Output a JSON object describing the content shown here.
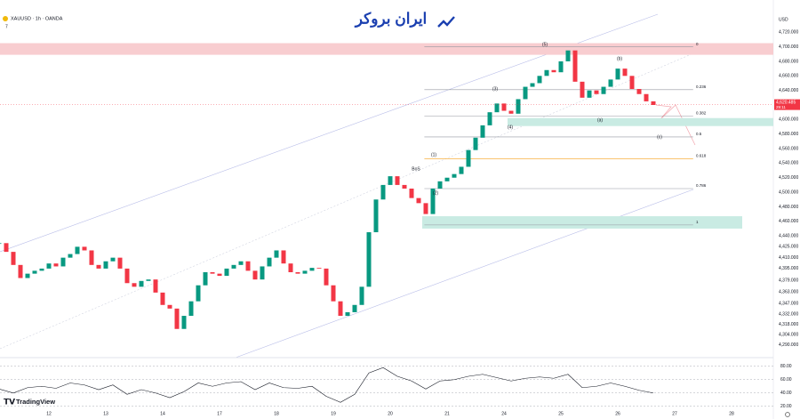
{
  "brand": "ایران بروکر",
  "footer": "TradingView",
  "chart_data": [
    {
      "type": "candlestick",
      "title": "XAUUSD · 1h · OANDA",
      "indicator_count": "7",
      "currency": "USD",
      "up_color": "#089981",
      "down_color": "#f23645",
      "x": [
        0,
        1,
        2,
        3,
        4,
        5,
        6,
        7,
        8,
        9,
        10,
        11,
        12,
        13,
        14,
        15,
        16,
        17,
        18,
        19,
        20,
        21,
        22,
        23,
        24,
        25,
        26,
        27,
        28,
        29,
        30,
        31,
        32,
        33,
        34,
        35,
        36,
        37,
        38,
        39,
        40,
        41,
        42,
        43,
        44,
        45,
        46,
        47,
        48,
        49,
        50,
        51,
        52,
        53,
        54,
        55,
        56,
        57,
        58,
        59,
        60,
        61,
        62,
        63,
        64,
        65,
        66,
        67,
        68,
        69,
        70,
        71,
        72,
        73,
        74,
        75,
        76,
        77,
        78,
        79,
        80,
        81,
        82,
        83,
        84,
        85,
        86,
        87,
        88,
        89,
        90,
        91,
        92
      ],
      "values": [
        4430,
        4418,
        4400,
        4382,
        4388,
        4392,
        4395,
        4402,
        4398,
        4410,
        4415,
        4425,
        4420,
        4400,
        4395,
        4405,
        4410,
        4395,
        4375,
        4370,
        4378,
        4380,
        4362,
        4345,
        4340,
        4312,
        4330,
        4350,
        4372,
        4390,
        4388,
        4385,
        4395,
        4400,
        4405,
        4392,
        4380,
        4398,
        4410,
        4420,
        4402,
        4390,
        4388,
        4392,
        4396,
        4395,
        4372,
        4350,
        4330,
        4335,
        4345,
        4370,
        4445,
        4490,
        4510,
        4522,
        4510,
        4505,
        4492,
        4485,
        4470,
        4505,
        4515,
        4520,
        4525,
        4535,
        4558,
        4575,
        4592,
        4610,
        4622,
        4612,
        4608,
        4628,
        4645,
        4650,
        4660,
        4668,
        4665,
        4680,
        4695,
        4652,
        4630,
        4640,
        4635,
        4645,
        4655,
        4670,
        4660,
        4642,
        4635,
        4625,
        4620
      ],
      "xlim": [
        0.125,
        108.875
      ],
      "ylim": [
        4275,
        4735
      ],
      "xticks": [
        {
          "value": 7,
          "label": "12"
        },
        {
          "value": 15,
          "label": "13"
        },
        {
          "value": 23,
          "label": "14"
        },
        {
          "value": 31,
          "label": "17"
        },
        {
          "value": 39,
          "label": "18"
        },
        {
          "value": 47,
          "label": "19"
        },
        {
          "value": 55,
          "label": "20"
        },
        {
          "value": 63,
          "label": "21"
        },
        {
          "value": 71,
          "label": "24"
        },
        {
          "value": 79,
          "label": "25"
        },
        {
          "value": 87,
          "label": "26"
        },
        {
          "value": 95,
          "label": "27"
        },
        {
          "value": 103,
          "label": "28"
        }
      ],
      "yticks": [
        {
          "value": 4720,
          "label": "4,720.000"
        },
        {
          "value": 4700,
          "label": "4,700.000"
        },
        {
          "value": 4680,
          "label": "4,680.000"
        },
        {
          "value": 4660,
          "label": "4,660.000"
        },
        {
          "value": 4640,
          "label": "4,640.000"
        },
        {
          "value": 4620,
          "label": "4,620.000"
        },
        {
          "value": 4600,
          "label": "4,600.000"
        },
        {
          "value": 4580,
          "label": "4,580.000"
        },
        {
          "value": 4560,
          "label": "4,560.000"
        },
        {
          "value": 4540,
          "label": "4,540.000"
        },
        {
          "value": 4520,
          "label": "4,520.000"
        },
        {
          "value": 4500,
          "label": "4,500.000"
        },
        {
          "value": 4480,
          "label": "4,480.000"
        },
        {
          "value": 4460,
          "label": "4,460.000"
        },
        {
          "value": 4440,
          "label": "4,440.000"
        },
        {
          "value": 4425,
          "label": "4,425.000"
        },
        {
          "value": 4410,
          "label": "4,410.000"
        },
        {
          "value": 4395,
          "label": "4,395.000"
        },
        {
          "value": 4379,
          "label": "4,379.000"
        },
        {
          "value": 4363,
          "label": "4,363.000"
        },
        {
          "value": 4347,
          "label": "4,347.000"
        },
        {
          "value": 4332,
          "label": "4,332.000"
        },
        {
          "value": 4318,
          "label": "4,318.000"
        },
        {
          "value": 4304,
          "label": "4,304.000"
        },
        {
          "value": 4290,
          "label": "4,290.000"
        }
      ],
      "grid": false,
      "last_price": {
        "value": 4620.485,
        "label": "4,620.485"
      },
      "countdown": "29:11",
      "fib_levels": [
        {
          "value": 4700,
          "label": "0",
          "color": "#9598a1"
        },
        {
          "value": 4641,
          "label": "0.236",
          "color": "#9598a1"
        },
        {
          "value": 4605,
          "label": "0.382",
          "color": "#9598a1"
        },
        {
          "value": 4576,
          "label": "0.5",
          "color": "#9598a1"
        },
        {
          "value": 4546,
          "label": "0.618",
          "color": "#f7a21b"
        },
        {
          "value": 4505,
          "label": "0.786",
          "color": "#9598a1"
        },
        {
          "value": 4455,
          "label": "1",
          "color": "#9598a1"
        }
      ],
      "zones": [
        {
          "from": 4689,
          "to": 4705,
          "color": "#f8cdd0"
        },
        {
          "from": 4591,
          "to": 4602,
          "color": "#c9ebe3"
        },
        {
          "from": 4450,
          "to": 4467,
          "color": "#c9ebe3"
        }
      ],
      "annotations": [
        "(5)",
        "(b)",
        "(3)",
        "(4)",
        "(a)",
        "(c)",
        "(1)",
        "(2)",
        "BoS"
      ]
    },
    {
      "type": "line",
      "color": "#131722",
      "x": [
        0,
        2,
        4,
        6,
        8,
        10,
        12,
        14,
        16,
        18,
        20,
        22,
        24,
        26,
        28,
        30,
        32,
        34,
        36,
        38,
        40,
        42,
        44,
        46,
        48,
        50,
        52,
        54,
        56,
        58,
        60,
        62,
        64,
        66,
        68,
        70,
        72,
        74,
        76,
        78,
        80,
        82,
        84,
        86,
        88,
        90,
        92
      ],
      "values": [
        46,
        40,
        48,
        50,
        47,
        55,
        52,
        45,
        52,
        38,
        45,
        40,
        33,
        42,
        55,
        50,
        55,
        57,
        45,
        55,
        48,
        47,
        50,
        35,
        26,
        38,
        70,
        78,
        65,
        58,
        46,
        58,
        60,
        65,
        68,
        63,
        58,
        62,
        64,
        62,
        68,
        48,
        50,
        55,
        50,
        44,
        40
      ],
      "ylim": [
        13,
        89
      ],
      "yticks": [
        {
          "value": 80,
          "label": "80.00"
        },
        {
          "value": 60,
          "label": "60.00"
        },
        {
          "value": 40,
          "label": "40.00"
        },
        {
          "value": 20,
          "label": "20.00"
        }
      ]
    }
  ]
}
